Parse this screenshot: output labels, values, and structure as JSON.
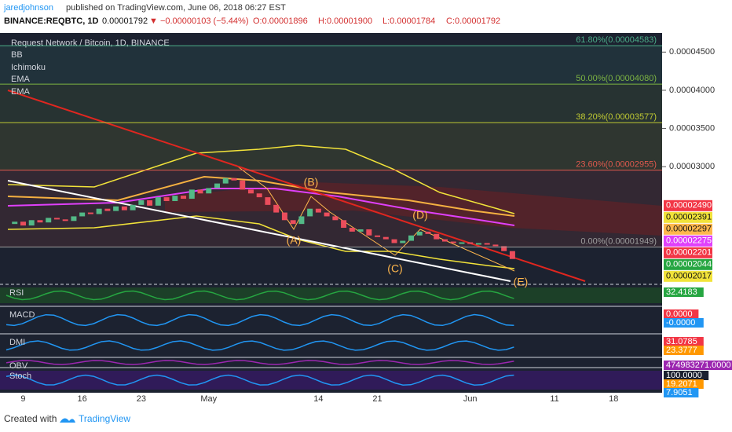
{
  "header": {
    "author": "jaredjohnson",
    "published": "published on TradingView.com, June 06, 2018 06:27 EST",
    "symbol": "BINANCE:REQBTC, 1D",
    "last": "0.00001792",
    "change": "▼ −0.00000103 (−5.44%)",
    "open": "O:0.00001896",
    "high": "H:0.00001900",
    "low": "L:0.00001784",
    "close": "C:0.00001792"
  },
  "chart": {
    "title": "Request Network / Bitcoin, 1D, BINANCE",
    "indicators": [
      "BB",
      "Ichimoku",
      "EMA",
      "EMA"
    ],
    "ylim": [
      1.46e-05,
      4.75e-05
    ],
    "price_ticks": [
      {
        "value": 4.5e-05,
        "label": "0.00004500"
      },
      {
        "value": 4e-05,
        "label": "0.00004000"
      },
      {
        "value": 3.5e-05,
        "label": "0.00003500"
      },
      {
        "value": 3e-05,
        "label": "0.00003000"
      }
    ],
    "fib": [
      {
        "value": 4.583e-05,
        "label": "61.80%(0.00004583)",
        "color": "#4caf8a"
      },
      {
        "value": 4.08e-05,
        "label": "50.00%(0.00004080)",
        "color": "#7cb342"
      },
      {
        "value": 3.577e-05,
        "label": "38.20%(0.00003577)",
        "color": "#c0ca33"
      },
      {
        "value": 2.955e-05,
        "label": "23.60%(0.00002955)",
        "color": "#e0594e"
      },
      {
        "value": 1.949e-05,
        "label": "0.00%(0.00001949)",
        "color": "#9e9e9e"
      }
    ],
    "price_labels": [
      {
        "value": 2.49e-05,
        "label": "0.00002490",
        "color": "#f23645"
      },
      {
        "value": 2.391e-05,
        "label": "0.00002391",
        "color": "#f2e33a"
      },
      {
        "value": 2.297e-05,
        "label": "0.00002297",
        "color": "#ffb74d"
      },
      {
        "value": 2.275e-05,
        "label": "0.00002275",
        "color": "#e040fb"
      },
      {
        "value": 2.201e-05,
        "label": "0.00002201",
        "color": "#f23645"
      },
      {
        "value": 2.044e-05,
        "label": "0.00002044",
        "color": "#26a641"
      },
      {
        "value": 2.017e-05,
        "label": "0.00002017",
        "color": "#f2e33a"
      }
    ],
    "waves": [
      "(A)",
      "(B)",
      "(C)",
      "(D)",
      "(E)"
    ],
    "categories": [
      null,
      null,
      "9",
      null,
      null,
      null,
      null,
      null,
      null,
      "16",
      null,
      null,
      null,
      null,
      null,
      null,
      "23",
      null,
      null,
      null,
      null,
      null,
      null,
      null,
      "May",
      null,
      null,
      null,
      null,
      null,
      null,
      null,
      null,
      null,
      null,
      null,
      null,
      "14",
      null,
      null,
      null,
      null,
      null,
      null,
      "21",
      null,
      null,
      null,
      null,
      null,
      null,
      null,
      null,
      null,
      null,
      "Jun",
      null,
      null,
      null,
      null,
      null
    ],
    "future_ticks": [
      "11",
      "18"
    ],
    "closes": [
      2.25e-05,
      2.28e-05,
      2.23e-05,
      2.3e-05,
      2.27e-05,
      2.33e-05,
      2.31e-05,
      2.29e-05,
      2.35e-05,
      2.4e-05,
      2.38e-05,
      2.45e-05,
      2.42e-05,
      2.48e-05,
      2.43e-05,
      2.5e-05,
      2.56e-05,
      2.49e-05,
      2.6e-05,
      2.55e-05,
      2.62e-05,
      2.58e-05,
      2.7e-05,
      2.65e-05,
      2.72e-05,
      2.78e-05,
      2.85e-05,
      2.82e-05,
      2.7e-05,
      2.65e-05,
      2.6e-05,
      2.5e-05,
      2.4e-05,
      2.3e-05,
      2.25e-05,
      2.35e-05,
      2.45e-05,
      2.4e-05,
      2.35e-05,
      2.3e-05,
      2.2e-05,
      2.15e-05,
      2.18e-05,
      2.1e-05,
      2.08e-05,
      2.05e-05,
      2e-05,
      2.03e-05,
      2.1e-05,
      2.15e-05,
      2.12e-05,
      2.05e-05,
      2.02e-05,
      2e-05,
      2.01e-05,
      1.99e-05,
      2e-05,
      1.98e-05,
      1.96e-05,
      1.895e-05,
      1.792e-05
    ],
    "panes": [
      {
        "name": "RSI",
        "labels": [
          {
            "text": "32.4183",
            "color": "#26a641"
          }
        ]
      },
      {
        "name": "MACD",
        "labels": [
          {
            "text": "0.0000",
            "color": "#f23645"
          },
          {
            "text": "-0.0000",
            "color": "#2196f3"
          }
        ]
      },
      {
        "name": "DMI",
        "labels": [
          {
            "text": "31.0785",
            "color": "#f23645"
          },
          {
            "text": "23.3777",
            "color": "#ff9800"
          }
        ]
      },
      {
        "name": "OBV",
        "labels": [
          {
            "text": "474983271.0000",
            "color": "#9c27b0"
          }
        ]
      },
      {
        "name": "Stoch",
        "labels": [
          {
            "text": "100.0000",
            "color": "#1c2030"
          },
          {
            "text": "19.2071",
            "color": "#ff9800"
          },
          {
            "text": "7.9051",
            "color": "#2196f3"
          }
        ]
      }
    ]
  },
  "footer": {
    "created": "Created with",
    "brand": "TradingView"
  }
}
